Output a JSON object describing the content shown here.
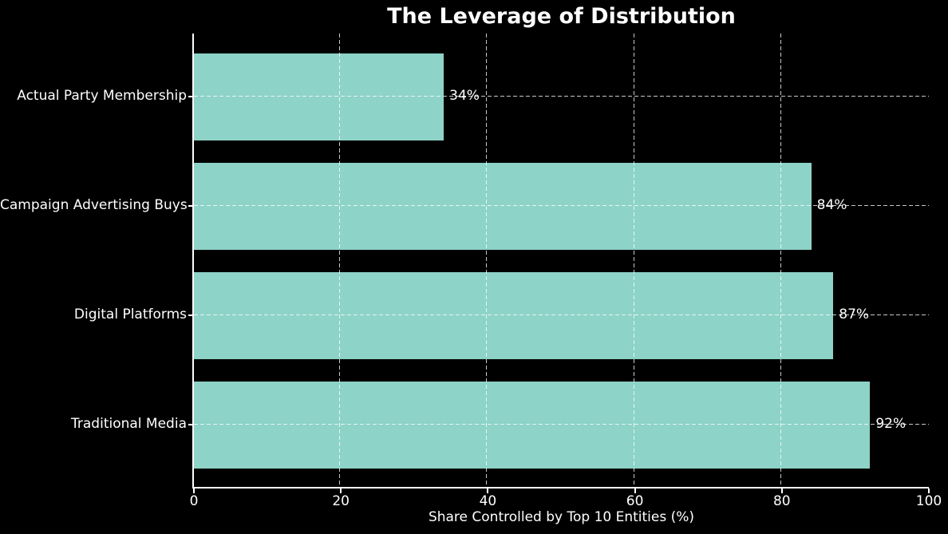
{
  "chart_data": {
    "type": "bar",
    "orientation": "horizontal",
    "title": "The Leverage of Distribution",
    "xlabel": "Share Controlled by Top 10 Entities (%)",
    "ylabel": "",
    "categories": [
      "Actual Party Membership",
      "Campaign Advertising Buys",
      "Digital Platforms",
      "Traditional Media"
    ],
    "values": [
      34,
      84,
      87,
      92
    ],
    "value_labels": [
      "34%",
      "84%",
      "87%",
      "92%"
    ],
    "xlim": [
      0,
      100
    ],
    "xticks": [
      "0",
      "20",
      "40",
      "60",
      "80",
      "100"
    ],
    "xtick_values": [
      0,
      20,
      40,
      60,
      80,
      100
    ],
    "grid_xtick_values": [
      20,
      40,
      60,
      80
    ],
    "grid": "dashed",
    "legend": "none",
    "colors": {
      "background": "#000000",
      "bar": "#8dd3c7",
      "text": "#ffffff",
      "gridline": "rgba(255,255,255,0.78)",
      "spine": "#ffffff"
    }
  }
}
